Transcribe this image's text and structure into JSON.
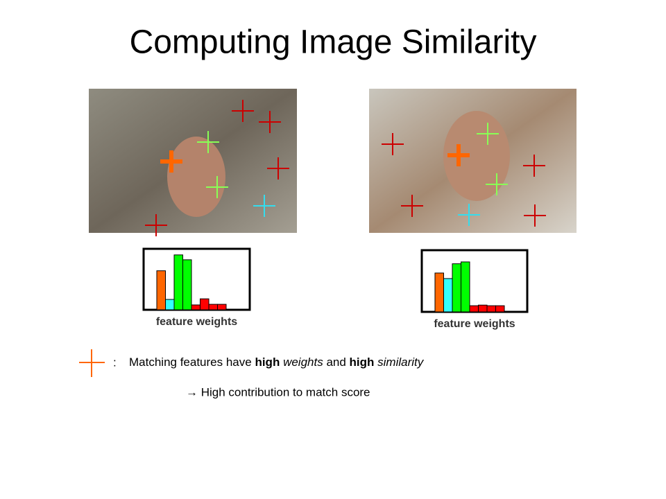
{
  "title": "Computing Image Similarity",
  "chart_data": [
    {
      "type": "bar",
      "x_label": "feature weights",
      "ylim": [
        0,
        100
      ],
      "values": [
        64,
        17,
        90,
        82,
        8,
        18,
        9,
        9
      ],
      "colors": [
        "#ff6600",
        "#33ffff",
        "#00ff00",
        "#00ff00",
        "#ff0000",
        "#ff0000",
        "#ff0000",
        "#ff0000"
      ]
    },
    {
      "type": "bar",
      "x_label": "feature weights",
      "ylim": [
        0,
        100
      ],
      "values": [
        63,
        54,
        78,
        81,
        10,
        11,
        10,
        10
      ],
      "colors": [
        "#ff6600",
        "#33ffff",
        "#00ff00",
        "#00ff00",
        "#ff0000",
        "#ff0000",
        "#ff0000",
        "#ff0000"
      ]
    }
  ],
  "legend": {
    "separator": ":",
    "runs": [
      {
        "text": "Matching features have ",
        "style": "normal"
      },
      {
        "text": "high",
        "style": "bold"
      },
      {
        "text": " weights",
        "style": "italic"
      },
      {
        "text": " and ",
        "style": "normal"
      },
      {
        "text": "high",
        "style": "bold"
      },
      {
        "text": " similarity",
        "style": "italic"
      }
    ]
  },
  "note": "→ High contribution to match score"
}
